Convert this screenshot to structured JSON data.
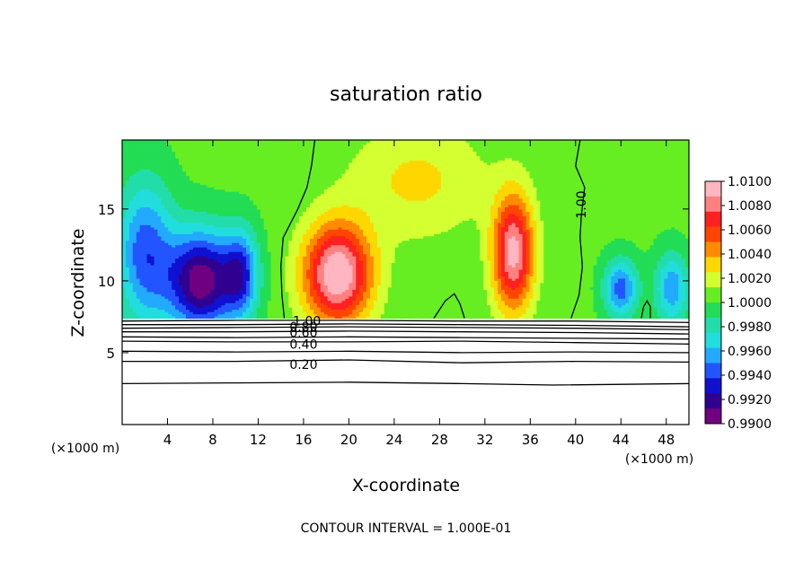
{
  "chart_data": {
    "type": "heatmap",
    "title": "saturation ratio",
    "xlabel": "X-coordinate",
    "ylabel": "Z-coordinate",
    "x_unit_left": "(×1000 m)",
    "x_unit_right": "(×1000 m)",
    "xlim": [
      0,
      50
    ],
    "ylim": [
      0,
      19.8
    ],
    "x_ticks": [
      "4",
      "8",
      "12",
      "16",
      "20",
      "24",
      "28",
      "32",
      "36",
      "40",
      "44",
      "48"
    ],
    "x_tick_values": [
      4,
      8,
      12,
      16,
      20,
      24,
      28,
      32,
      36,
      40,
      44,
      48
    ],
    "y_ticks": [
      "5",
      "10",
      "15"
    ],
    "y_tick_values": [
      5,
      10,
      15
    ],
    "footer": "CONTOUR INTERVAL = 1.000E-01",
    "colorbar": {
      "labels": [
        "1.0100",
        "1.0080",
        "1.0060",
        "1.0040",
        "1.0020",
        "1.0000",
        "0.9980",
        "0.9960",
        "0.9940",
        "0.9920",
        "0.9900"
      ],
      "range": [
        0.99,
        1.01
      ],
      "colors": [
        "#ffb6c1",
        "#ff8080",
        "#ff2020",
        "#ff4500",
        "#ff8c00",
        "#ffd700",
        "#d4ff30",
        "#66ee22",
        "#22dd55",
        "#22ddaa",
        "#22dddd",
        "#22aaff",
        "#2255ff",
        "#1010d0",
        "#300090",
        "#700080"
      ]
    },
    "contour_labels": [
      {
        "text": "1.00",
        "x": 40.5,
        "z": 15.3
      },
      {
        "text": "1.00",
        "x": 16.3,
        "z": 7.2
      },
      {
        "text": "0.80",
        "x": 16.0,
        "z": 6.8
      },
      {
        "text": "0.60",
        "x": 16.0,
        "z": 6.4
      },
      {
        "text": "0.40",
        "x": 16.0,
        "z": 5.6
      },
      {
        "text": "0.20",
        "x": 16.0,
        "z": 4.2
      }
    ],
    "contours": [
      {
        "level": 1.0,
        "points": [
          [
            17,
            19.8
          ],
          [
            16.7,
            18
          ],
          [
            16.3,
            16.5
          ],
          [
            15.5,
            15
          ],
          [
            14.2,
            13
          ],
          [
            14.0,
            11
          ],
          [
            14.1,
            9
          ],
          [
            14.3,
            7.4
          ]
        ]
      },
      {
        "level": 1.0,
        "points": [
          [
            40.4,
            19.8
          ],
          [
            40.0,
            18
          ],
          [
            40.8,
            16.5
          ],
          [
            40.5,
            14.5
          ],
          [
            40.4,
            13
          ],
          [
            40.6,
            11
          ],
          [
            40.3,
            9
          ],
          [
            39.6,
            7.4
          ]
        ]
      },
      {
        "level": 1.0,
        "points": [
          [
            27.5,
            7.4
          ],
          [
            28.5,
            8.6
          ],
          [
            29.3,
            9.1
          ],
          [
            29.8,
            8.4
          ],
          [
            30.2,
            7.4
          ]
        ]
      },
      {
        "level": 1.0,
        "points": [
          [
            45.8,
            7.4
          ],
          [
            46.0,
            8.2
          ],
          [
            46.3,
            8.6
          ],
          [
            46.6,
            8.2
          ],
          [
            46.6,
            7.4
          ]
        ]
      },
      {
        "level": 0.9,
        "points": [
          [
            0,
            7.2
          ],
          [
            10,
            7.25
          ],
          [
            20,
            7.25
          ],
          [
            30,
            7.2
          ],
          [
            40,
            7.2
          ],
          [
            50,
            7.1
          ]
        ]
      },
      {
        "level": 0.8,
        "points": [
          [
            0,
            6.95
          ],
          [
            10,
            6.95
          ],
          [
            20,
            7.0
          ],
          [
            30,
            6.95
          ],
          [
            40,
            6.9
          ],
          [
            50,
            6.8
          ]
        ]
      },
      {
        "level": 0.7,
        "points": [
          [
            0,
            6.7
          ],
          [
            10,
            6.75
          ],
          [
            20,
            6.8
          ],
          [
            30,
            6.75
          ],
          [
            40,
            6.7
          ],
          [
            50,
            6.6
          ]
        ]
      },
      {
        "level": 0.6,
        "points": [
          [
            0,
            6.45
          ],
          [
            10,
            6.45
          ],
          [
            20,
            6.5
          ],
          [
            30,
            6.45
          ],
          [
            40,
            6.4
          ],
          [
            50,
            6.3
          ]
        ]
      },
      {
        "level": 0.5,
        "points": [
          [
            0,
            6.1
          ],
          [
            10,
            6.05
          ],
          [
            20,
            6.1
          ],
          [
            30,
            6.05
          ],
          [
            40,
            6.0
          ],
          [
            50,
            5.95
          ]
        ]
      },
      {
        "level": 0.4,
        "points": [
          [
            0,
            5.8
          ],
          [
            10,
            5.75
          ],
          [
            20,
            5.75
          ],
          [
            30,
            5.8
          ],
          [
            40,
            5.7
          ],
          [
            50,
            5.6
          ]
        ]
      },
      {
        "level": 0.3,
        "points": [
          [
            0,
            5.1
          ],
          [
            10,
            5.05
          ],
          [
            20,
            5.1
          ],
          [
            30,
            5.0
          ],
          [
            40,
            5.05
          ],
          [
            50,
            5.0
          ]
        ]
      },
      {
        "level": 0.2,
        "points": [
          [
            0,
            4.4
          ],
          [
            10,
            4.4
          ],
          [
            20,
            4.5
          ],
          [
            30,
            4.3
          ],
          [
            40,
            4.4
          ],
          [
            50,
            4.35
          ]
        ]
      },
      {
        "level": 0.1,
        "points": [
          [
            0,
            2.85
          ],
          [
            10,
            2.9
          ],
          [
            20,
            2.95
          ],
          [
            30,
            2.85
          ],
          [
            38,
            2.75
          ],
          [
            50,
            2.85
          ]
        ]
      }
    ],
    "field": {
      "nx": 51,
      "nz": 21,
      "z_max": 19.8,
      "base_height_left": 7.4,
      "plumes": [
        {
          "x": 19.0,
          "z": 10.5,
          "amp": 0.01,
          "sx": 3.0,
          "sz": 3.5
        },
        {
          "x": 34.5,
          "z": 12.0,
          "amp": 0.009,
          "sx": 1.8,
          "sz": 4.0
        },
        {
          "x": 7.0,
          "z": 10.0,
          "amp": -0.01,
          "sx": 3.0,
          "sz": 3.5
        },
        {
          "x": 2.0,
          "z": 12.0,
          "amp": -0.006,
          "sx": 2.5,
          "sz": 5.0
        },
        {
          "x": 10.5,
          "z": 10.5,
          "amp": -0.006,
          "sx": 1.5,
          "sz": 3.0
        },
        {
          "x": 44.0,
          "z": 9.5,
          "amp": -0.006,
          "sx": 1.5,
          "sz": 2.0
        },
        {
          "x": 48.5,
          "z": 9.5,
          "amp": -0.005,
          "sx": 1.5,
          "sz": 2.5
        },
        {
          "x": 26.0,
          "z": 17.0,
          "amp": 0.0025,
          "sx": 6.0,
          "sz": 4.0
        }
      ]
    }
  }
}
